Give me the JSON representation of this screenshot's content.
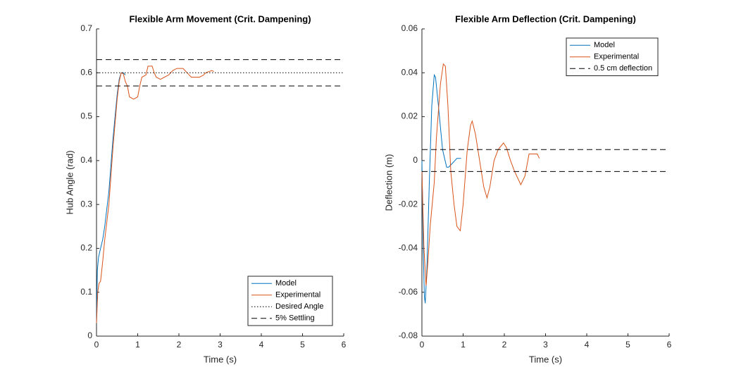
{
  "chart_data": [
    {
      "type": "line",
      "title": "Flexible Arm Movement (Crit. Dampening)",
      "xlabel": "Time (s)",
      "ylabel": "Hub Angle (rad)",
      "xlim": [
        0,
        6
      ],
      "xticks": [
        0,
        1,
        2,
        3,
        4,
        5,
        6
      ],
      "ylim": [
        0,
        0.7
      ],
      "yticks": [
        0,
        0.1,
        0.2,
        0.3,
        0.4,
        0.5,
        0.6,
        0.7
      ],
      "legend": "lower right",
      "series": [
        {
          "name": "Model",
          "color": "#0072bd",
          "style": "solid",
          "x": [
            0,
            0.02,
            0.05,
            0.1,
            0.15,
            0.2,
            0.3,
            0.4,
            0.5,
            0.55,
            0.6,
            0.65,
            0.7
          ],
          "values": [
            0.03,
            0.15,
            0.18,
            0.2,
            0.22,
            0.25,
            0.33,
            0.45,
            0.55,
            0.585,
            0.6,
            0.6,
            0.595
          ]
        },
        {
          "name": "Experimental",
          "color": "#d95319",
          "style": "solid",
          "x": [
            0,
            0.03,
            0.06,
            0.1,
            0.15,
            0.2,
            0.3,
            0.4,
            0.5,
            0.55,
            0.6,
            0.65,
            0.7,
            0.75,
            0.8,
            0.9,
            1.0,
            1.05,
            1.1,
            1.2,
            1.25,
            1.35,
            1.4,
            1.45,
            1.55,
            1.65,
            1.75,
            1.85,
            1.95,
            2.1,
            2.2,
            2.3,
            2.5,
            2.6,
            2.65,
            2.8,
            2.85
          ],
          "values": [
            0.03,
            0.1,
            0.12,
            0.125,
            0.17,
            0.22,
            0.3,
            0.43,
            0.54,
            0.58,
            0.6,
            0.598,
            0.58,
            0.57,
            0.545,
            0.54,
            0.545,
            0.57,
            0.59,
            0.595,
            0.615,
            0.615,
            0.6,
            0.59,
            0.585,
            0.59,
            0.595,
            0.605,
            0.61,
            0.61,
            0.6,
            0.59,
            0.59,
            0.595,
            0.6,
            0.605,
            0.603
          ]
        },
        {
          "name": "Desired Angle",
          "color": "#000000",
          "style": "dotted",
          "type": "hline",
          "values": [
            0.6
          ]
        },
        {
          "name": "5% Settling",
          "color": "#000000",
          "style": "dashed",
          "type": "hline",
          "values": [
            0.63,
            0.57
          ]
        }
      ]
    },
    {
      "type": "line",
      "title": "Flexible Arm Deflection (Crit. Dampening)",
      "xlabel": "Time (s)",
      "ylabel": "Deflection (m)",
      "xlim": [
        0,
        6
      ],
      "xticks": [
        0,
        1,
        2,
        3,
        4,
        5,
        6
      ],
      "ylim": [
        -0.08,
        0.06
      ],
      "yticks": [
        -0.08,
        -0.06,
        -0.04,
        -0.02,
        0,
        0.02,
        0.04,
        0.06
      ],
      "legend": "upper right",
      "series": [
        {
          "name": "Model",
          "color": "#0072bd",
          "style": "solid",
          "x": [
            0,
            0.03,
            0.06,
            0.08,
            0.12,
            0.18,
            0.24,
            0.3,
            0.33,
            0.4,
            0.5,
            0.6,
            0.65,
            0.75,
            0.85,
            0.95
          ],
          "values": [
            0,
            -0.04,
            -0.062,
            -0.065,
            -0.05,
            -0.01,
            0.025,
            0.039,
            0.038,
            0.025,
            0.005,
            -0.003,
            -0.003,
            -0.001,
            0.001,
            0.001
          ]
        },
        {
          "name": "Experimental",
          "color": "#d95319",
          "style": "solid",
          "x": [
            0,
            0.05,
            0.1,
            0.15,
            0.2,
            0.25,
            0.3,
            0.35,
            0.45,
            0.52,
            0.57,
            0.63,
            0.7,
            0.78,
            0.85,
            0.93,
            1.0,
            1.1,
            1.18,
            1.22,
            1.3,
            1.4,
            1.5,
            1.58,
            1.65,
            1.75,
            1.85,
            1.98,
            2.05,
            2.15,
            2.25,
            2.4,
            2.5,
            2.6,
            2.75,
            2.8,
            2.85
          ],
          "values": [
            -0.005,
            -0.04,
            -0.057,
            -0.045,
            -0.03,
            -0.02,
            -0.01,
            0.01,
            0.035,
            0.044,
            0.043,
            0.025,
            -0.005,
            -0.02,
            -0.03,
            -0.032,
            -0.02,
            0.005,
            0.016,
            0.018,
            0.012,
            0,
            -0.012,
            -0.017,
            -0.012,
            0,
            0.005,
            0.008,
            0.006,
            0,
            -0.005,
            -0.011,
            -0.007,
            0.003,
            0.003,
            0.003,
            0.001
          ]
        },
        {
          "name": "0.5 cm deflection",
          "color": "#000000",
          "style": "dashed",
          "type": "hline",
          "values": [
            0.005,
            -0.005
          ]
        }
      ]
    }
  ]
}
